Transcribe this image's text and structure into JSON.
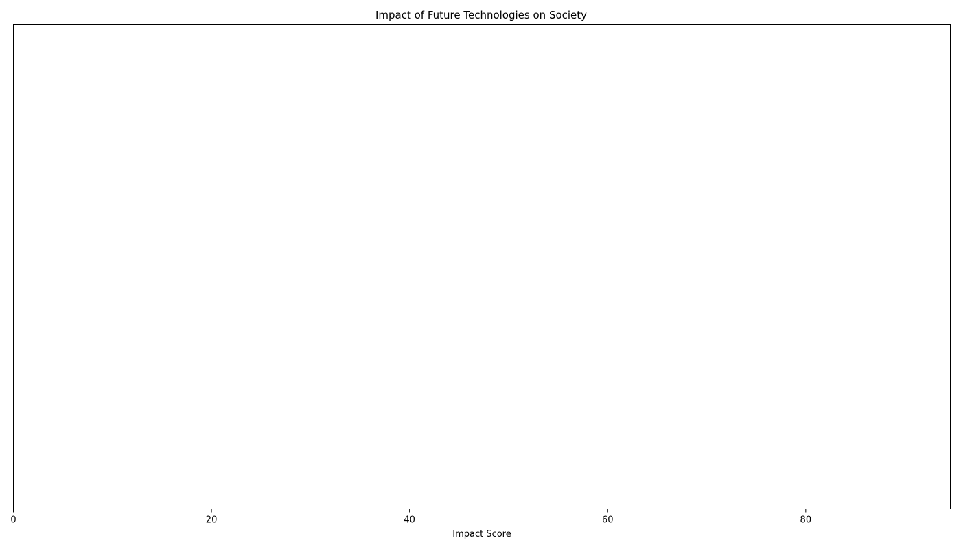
{
  "chart_data": {
    "type": "bar",
    "orientation": "horizontal",
    "title": "Impact of Future Technologies on Society",
    "xlabel": "Impact Score",
    "ylabel": "",
    "xlim": [
      0,
      94.6
    ],
    "xticks": [
      0,
      20,
      40,
      60,
      80
    ],
    "categories": [],
    "values": [],
    "grid": false,
    "legend": "none"
  }
}
